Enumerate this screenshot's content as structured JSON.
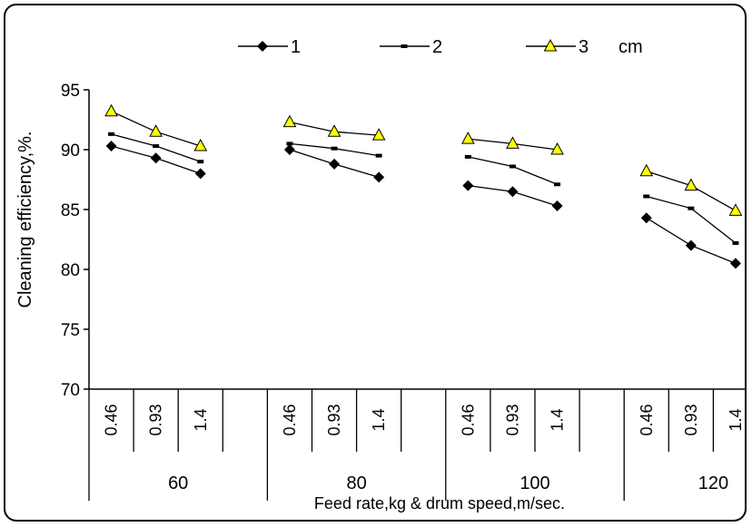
{
  "chart_data": {
    "type": "line",
    "title": "",
    "ylabel": "Cleaning efficiency,%.",
    "xlabel": "Feed rate,kg & drum speed,m/sec.",
    "ylim": [
      70,
      95
    ],
    "yticks": [
      70,
      75,
      80,
      85,
      90,
      95
    ],
    "legend_position": "top",
    "legend_suffix": "cm",
    "groups": [
      "60",
      "80",
      "100",
      "120"
    ],
    "subcategories": [
      "0.46",
      "0.93",
      "1.4"
    ],
    "series": [
      {
        "name": "1",
        "marker": "diamond",
        "color": "#000000",
        "values": [
          [
            90.3,
            89.3,
            88.0
          ],
          [
            90.0,
            88.8,
            87.7
          ],
          [
            87.0,
            86.5,
            85.3
          ],
          [
            84.3,
            82.0,
            80.5
          ]
        ]
      },
      {
        "name": "2",
        "marker": "dash",
        "color": "#000000",
        "values": [
          [
            91.3,
            90.3,
            89.0
          ],
          [
            90.5,
            90.1,
            89.5
          ],
          [
            89.4,
            88.6,
            87.1
          ],
          [
            86.1,
            85.1,
            82.2
          ]
        ]
      },
      {
        "name": "3",
        "marker": "triangle",
        "color": "#000000",
        "fill": "#ffff00",
        "values": [
          [
            93.2,
            91.5,
            90.3
          ],
          [
            92.3,
            91.5,
            91.2
          ],
          [
            90.9,
            90.5,
            90.0
          ],
          [
            88.2,
            87.0,
            84.9
          ]
        ]
      }
    ]
  }
}
